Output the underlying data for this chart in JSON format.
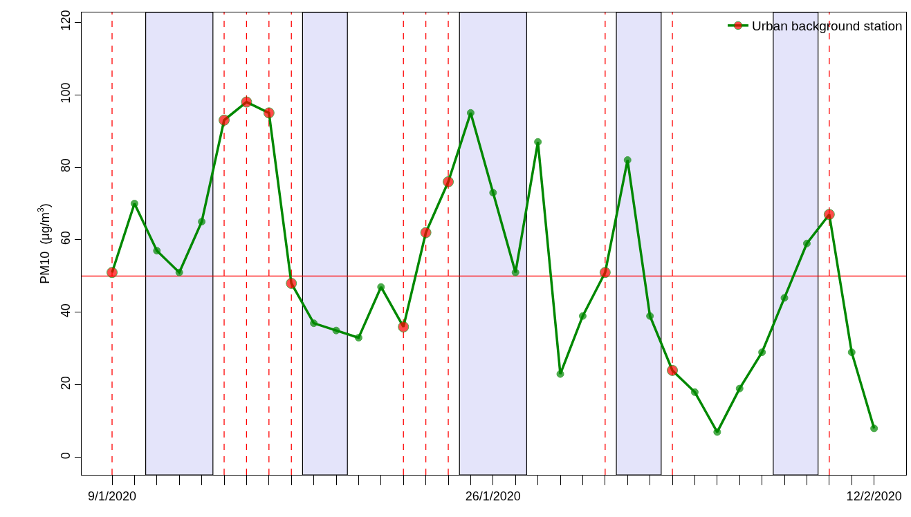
{
  "chart_data": {
    "type": "line",
    "ylabel": "PM10  (μg/m$^{3}$)",
    "x": [
      "2020-01-09",
      "2020-01-10",
      "2020-01-11",
      "2020-01-12",
      "2020-01-13",
      "2020-01-14",
      "2020-01-15",
      "2020-01-16",
      "2020-01-17",
      "2020-01-18",
      "2020-01-19",
      "2020-01-20",
      "2020-01-21",
      "2020-01-22",
      "2020-01-23",
      "2020-01-24",
      "2020-01-25",
      "2020-01-26",
      "2020-01-27",
      "2020-01-28",
      "2020-01-29",
      "2020-01-30",
      "2020-01-31",
      "2020-02-01",
      "2020-02-02",
      "2020-02-03",
      "2020-02-04",
      "2020-02-05",
      "2020-02-06",
      "2020-02-07",
      "2020-02-08",
      "2020-02-09",
      "2020-02-10",
      "2020-02-11",
      "2020-02-12"
    ],
    "series": [
      {
        "name": "Urban background station",
        "color": "#008800",
        "values": [
          51,
          70,
          57,
          51,
          65,
          93,
          98,
          95,
          48,
          37,
          35,
          33,
          47,
          36,
          62,
          76,
          95,
          73,
          51,
          87,
          23,
          39,
          51,
          82,
          39,
          24,
          18,
          7,
          19,
          29,
          44,
          59,
          67,
          29,
          8
        ],
        "colors": [
          "#ff0000",
          "#008800",
          "#008800",
          "#008800",
          "#008800",
          "#ff0000",
          "#ff0000",
          "#ff0000",
          "#ff0000",
          "#008800",
          "#008800",
          "#008800",
          "#008800",
          "#ff0000",
          "#ff0000",
          "#ff0000",
          "#008800",
          "#008800",
          "#008800",
          "#008800",
          "#008800",
          "#008800",
          "#ff0000",
          "#008800",
          "#008800",
          "#ff0000",
          "#008800",
          "#008800",
          "#008800",
          "#008800",
          "#008800",
          "#008800",
          "#ff0000",
          "#008800",
          "#008800"
        ]
      }
    ],
    "marker": "circle",
    "line_style": "solid",
    "grid": false,
    "legend": "top right",
    "xlim": [
      "2020-01-07T15:24",
      "2020-02-13T10:20"
    ],
    "xticks": [
      {
        "value": "2020-01-09",
        "label": "9/1/2020"
      },
      {
        "value": "2020-01-10",
        "label": null
      },
      {
        "value": "2020-01-11",
        "label": null
      },
      {
        "value": "2020-01-12",
        "label": null
      },
      {
        "value": "2020-01-13",
        "label": null
      },
      {
        "value": "2020-01-14",
        "label": null
      },
      {
        "value": "2020-01-15",
        "label": null
      },
      {
        "value": "2020-01-16",
        "label": null
      },
      {
        "value": "2020-01-17",
        "label": null
      },
      {
        "value": "2020-01-18",
        "label": null
      },
      {
        "value": "2020-01-19",
        "label": null
      },
      {
        "value": "2020-01-20",
        "label": null
      },
      {
        "value": "2020-01-21",
        "label": null
      },
      {
        "value": "2020-01-22",
        "label": null
      },
      {
        "value": "2020-01-23",
        "label": null
      },
      {
        "value": "2020-01-24",
        "label": null
      },
      {
        "value": "2020-01-25",
        "label": null
      },
      {
        "value": "2020-01-26",
        "label": "26/1/2020"
      },
      {
        "value": "2020-01-27",
        "label": null
      },
      {
        "value": "2020-01-28",
        "label": null
      },
      {
        "value": "2020-01-29",
        "label": null
      },
      {
        "value": "2020-01-30",
        "label": null
      },
      {
        "value": "2020-01-31",
        "label": null
      },
      {
        "value": "2020-02-01",
        "label": null
      },
      {
        "value": "2020-02-02",
        "label": null
      },
      {
        "value": "2020-02-03",
        "label": null
      },
      {
        "value": "2020-02-04",
        "label": null
      },
      {
        "value": "2020-02-05",
        "label": null
      },
      {
        "value": "2020-02-06",
        "label": null
      },
      {
        "value": "2020-02-07",
        "label": null
      },
      {
        "value": "2020-02-08",
        "label": null
      },
      {
        "value": "2020-02-09",
        "label": null
      },
      {
        "value": "2020-02-10",
        "label": null
      },
      {
        "value": "2020-02-11",
        "label": null
      },
      {
        "value": "2020-02-12",
        "label": "12/2/2020"
      }
    ],
    "ylim": [
      -4.8,
      122.7
    ],
    "yticks": [
      0,
      20,
      40,
      60,
      80,
      100,
      120
    ],
    "ref_lines": [
      {
        "axis": "y",
        "value": 50,
        "color": "#ff0000",
        "line_style": "solid"
      },
      {
        "axis": "x",
        "value": "2020-01-09",
        "color": "#ff0000",
        "line_style": "dashed"
      },
      {
        "axis": "x",
        "value": "2020-01-14",
        "color": "#ff0000",
        "line_style": "dashed"
      },
      {
        "axis": "x",
        "value": "2020-01-15",
        "color": "#ff0000",
        "line_style": "dashed"
      },
      {
        "axis": "x",
        "value": "2020-01-16",
        "color": "#ff0000",
        "line_style": "dashed"
      },
      {
        "axis": "x",
        "value": "2020-01-17",
        "color": "#ff0000",
        "line_style": "dashed"
      },
      {
        "axis": "x",
        "value": "2020-01-22",
        "color": "#ff0000",
        "line_style": "dashed"
      },
      {
        "axis": "x",
        "value": "2020-01-23",
        "color": "#ff0000",
        "line_style": "dashed"
      },
      {
        "axis": "x",
        "value": "2020-01-24",
        "color": "#ff0000",
        "line_style": "dashed"
      },
      {
        "axis": "x",
        "value": "2020-01-31",
        "color": "#ff0000",
        "line_style": "dashed"
      },
      {
        "axis": "x",
        "value": "2020-02-03",
        "color": "#ff0000",
        "line_style": "dashed"
      },
      {
        "axis": "x",
        "value": "2020-02-10",
        "color": "#ff0000",
        "line_style": "dashed"
      }
    ],
    "bands": [
      {
        "axis": "x",
        "from": "2020-01-10T12:00",
        "to": "2020-01-13T12:00",
        "color": "#e4e4fa"
      },
      {
        "axis": "x",
        "from": "2020-01-17T12:00",
        "to": "2020-01-19T12:00",
        "color": "#e4e4fa"
      },
      {
        "axis": "x",
        "from": "2020-01-24T12:00",
        "to": "2020-01-27T12:00",
        "color": "#e4e4fa"
      },
      {
        "axis": "x",
        "from": "2020-01-31T12:00",
        "to": "2020-02-02T12:00",
        "color": "#e4e4fa"
      },
      {
        "axis": "x",
        "from": "2020-02-07T12:00",
        "to": "2020-02-09T12:00",
        "color": "#e4e4fa"
      }
    ]
  }
}
